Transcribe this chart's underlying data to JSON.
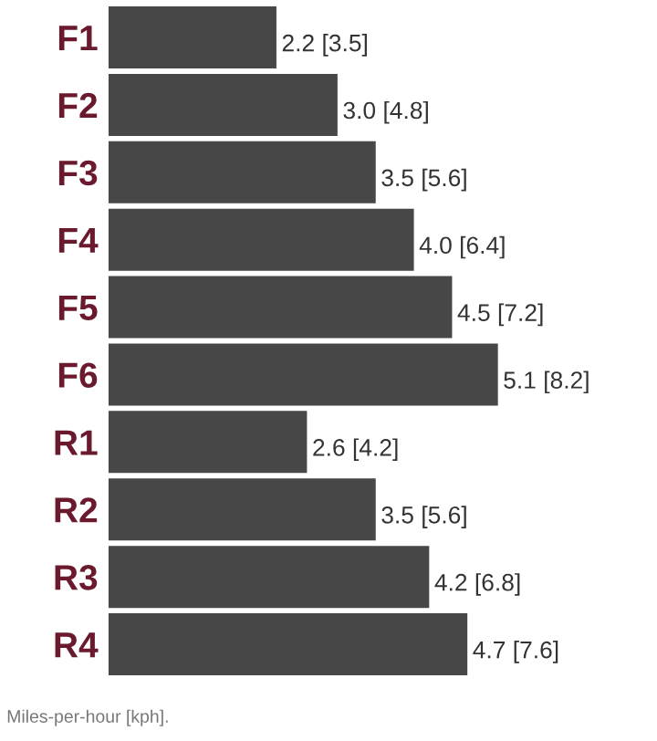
{
  "chart_data": {
    "type": "bar",
    "orientation": "horizontal",
    "categories": [
      "F1",
      "F2",
      "F3",
      "F4",
      "F5",
      "F6",
      "R1",
      "R2",
      "R3",
      "R4"
    ],
    "values": [
      2.2,
      3.0,
      3.5,
      4.0,
      4.5,
      5.1,
      2.6,
      3.5,
      4.2,
      4.7
    ],
    "value_labels": [
      "2.2 [3.5]",
      "3.0 [4.8]",
      "3.5 [5.6]",
      "4.0 [6.4]",
      "4.5 [7.2]",
      "5.1 [8.2]",
      "2.6 [4.2]",
      "3.5 [5.6]",
      "4.2 [6.8]",
      "4.7 [7.6]"
    ],
    "color": "#474747",
    "annotations": [
      "Miles-per-hour [kph]."
    ],
    "grid": false,
    "legend": false
  }
}
